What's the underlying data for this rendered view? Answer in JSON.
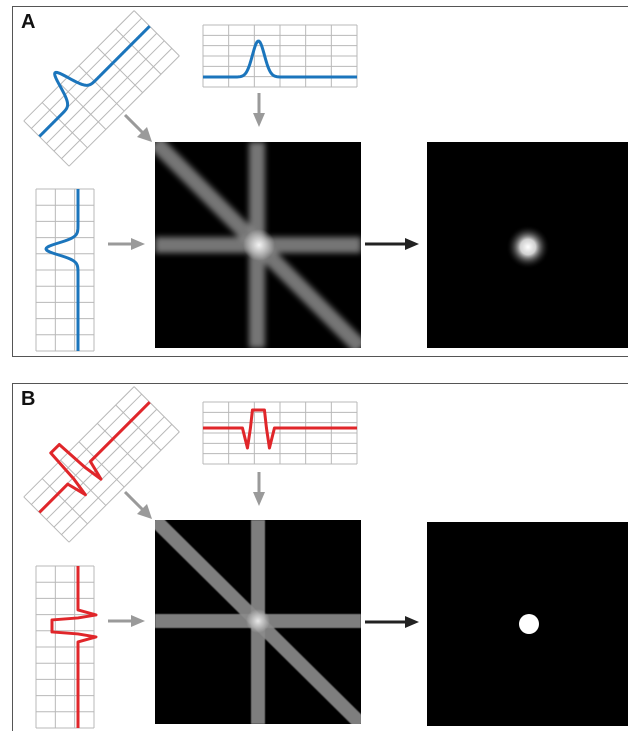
{
  "panels": [
    {
      "label": "A",
      "profile_color": "#1b75bc",
      "profile_style": "gaussian",
      "output_style": "blurred-spot"
    },
    {
      "label": "B",
      "profile_color": "#e0262a",
      "profile_style": "filtered-rect",
      "output_style": "sharp-disc"
    }
  ],
  "colors": {
    "arrow_gray": "#9a9a9a",
    "arrow_black": "#222222",
    "grid": "#b8b8b8",
    "image_bg": "#000000"
  }
}
